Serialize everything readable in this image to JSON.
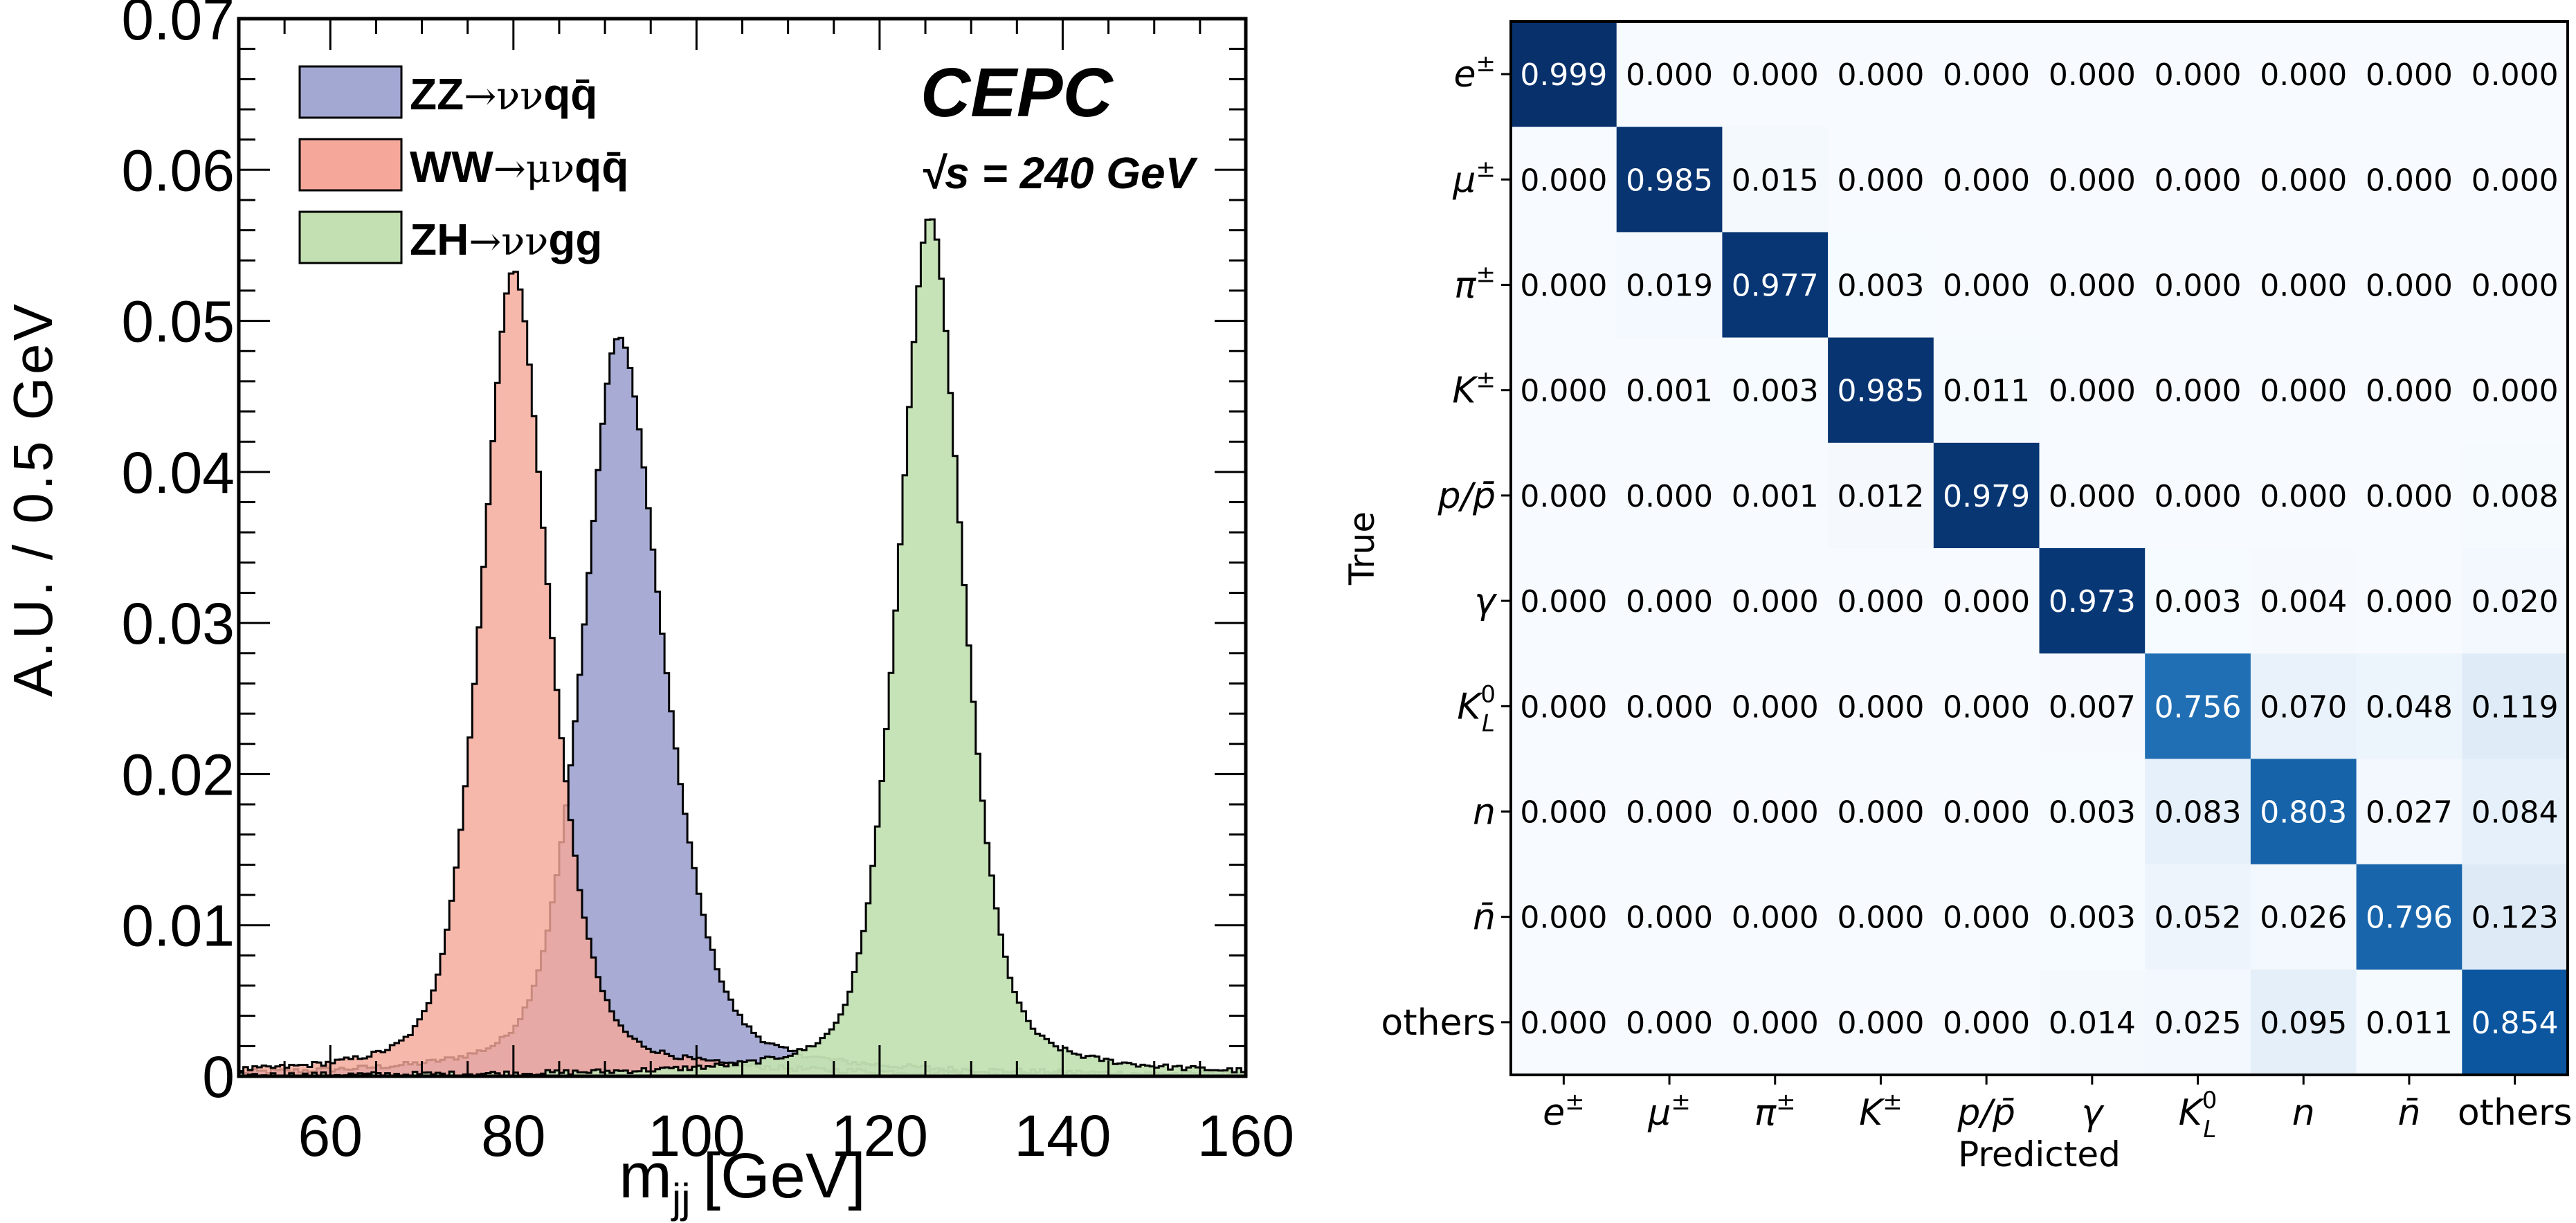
{
  "chart_data": [
    {
      "type": "area",
      "subtype": "histogram",
      "title": "",
      "xlabel": "m_jj [GeV]",
      "xlabel_main": "m",
      "xlabel_sub": "jj",
      "xlabel_unit": "[GeV]",
      "ylabel": "A.U. / 0.5 GeV",
      "xlim": [
        50,
        160
      ],
      "ylim": [
        0,
        0.07
      ],
      "xticks": [
        60,
        80,
        100,
        120,
        140,
        160
      ],
      "xtick_labels": [
        "60",
        "80",
        "100",
        "120",
        "140",
        "160"
      ],
      "yticks": [
        0,
        0.01,
        0.02,
        0.03,
        0.04,
        0.05,
        0.06,
        0.07
      ],
      "ytick_labels": [
        "0",
        "0.01",
        "0.02",
        "0.03",
        "0.04",
        "0.05",
        "0.06",
        "0.07"
      ],
      "bin_width": 0.5,
      "legend_position": "top-left",
      "annotations": {
        "experiment": "CEPC",
        "energy": "√s = 240 GeV"
      },
      "series": [
        {
          "name": "ZZ→ννqq̄",
          "legend_main": "ZZ",
          "legend_arrow": "→νν",
          "legend_tail": "qq̄",
          "color": "#a3a8d3",
          "peak_x": 91.5,
          "peak_y": 0.0486,
          "sigma_left": 4.2,
          "sigma_right": 5.2,
          "tail": 0.0012
        },
        {
          "name": "WW→μνqq̄",
          "legend_main": "WW",
          "legend_arrow": "→μν",
          "legend_tail": "qq̄",
          "color": "#f5a89a",
          "peak_x": 80.0,
          "peak_y": 0.053,
          "sigma_left": 3.8,
          "sigma_right": 4.2,
          "tail": 0.0012
        },
        {
          "name": "ZH→ννgg",
          "legend_main": "ZH",
          "legend_arrow": "→νν",
          "legend_tail": "gg",
          "color": "#c3e0b3",
          "peak_x": 125.5,
          "peak_y": 0.0566,
          "sigma_left": 3.7,
          "sigma_right": 3.9,
          "tail": 0.001
        }
      ]
    },
    {
      "type": "heatmap",
      "title": "",
      "xlabel": "Predicted",
      "ylabel": "True",
      "colormap": "Blues",
      "vlim": [
        0,
        1
      ],
      "row_labels": [
        "e±",
        "μ±",
        "π±",
        "K±",
        "p/p̄",
        "γ",
        "K0L",
        "n",
        "n̄",
        "others"
      ],
      "col_labels": [
        "e±",
        "μ±",
        "π±",
        "K±",
        "p/p̄",
        "γ",
        "K0L",
        "n",
        "n̄",
        "others"
      ],
      "values": [
        [
          0.999,
          0.0,
          0.0,
          0.0,
          0.0,
          0.0,
          0.0,
          0.0,
          0.0,
          0.0
        ],
        [
          0.0,
          0.985,
          0.015,
          0.0,
          0.0,
          0.0,
          0.0,
          0.0,
          0.0,
          0.0
        ],
        [
          0.0,
          0.019,
          0.977,
          0.003,
          0.0,
          0.0,
          0.0,
          0.0,
          0.0,
          0.0
        ],
        [
          0.0,
          0.001,
          0.003,
          0.985,
          0.011,
          0.0,
          0.0,
          0.0,
          0.0,
          0.0
        ],
        [
          0.0,
          0.0,
          0.001,
          0.012,
          0.979,
          0.0,
          0.0,
          0.0,
          0.0,
          0.008
        ],
        [
          0.0,
          0.0,
          0.0,
          0.0,
          0.0,
          0.973,
          0.003,
          0.004,
          0.0,
          0.02
        ],
        [
          0.0,
          0.0,
          0.0,
          0.0,
          0.0,
          0.007,
          0.756,
          0.07,
          0.048,
          0.119
        ],
        [
          0.0,
          0.0,
          0.0,
          0.0,
          0.0,
          0.003,
          0.083,
          0.803,
          0.027,
          0.084
        ],
        [
          0.0,
          0.0,
          0.0,
          0.0,
          0.0,
          0.003,
          0.052,
          0.026,
          0.796,
          0.123
        ],
        [
          0.0,
          0.0,
          0.0,
          0.0,
          0.0,
          0.014,
          0.025,
          0.095,
          0.011,
          0.854
        ]
      ],
      "value_format": "0.000"
    }
  ]
}
